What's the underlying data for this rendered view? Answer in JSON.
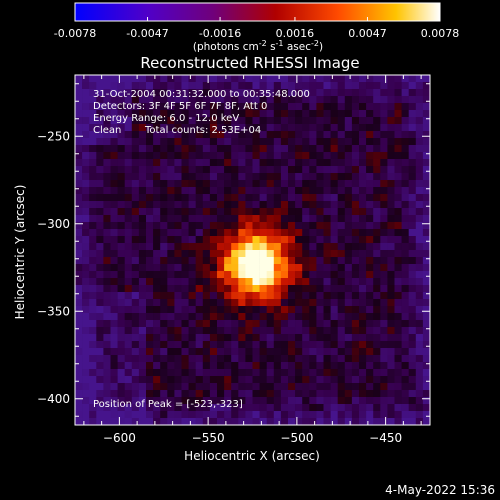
{
  "colorbar": {
    "ticks": [
      "-0.0078",
      "-0.0047",
      "-0.0016",
      "0.0016",
      "0.0047",
      "0.0078"
    ],
    "tick_values": [
      -0.0078,
      -0.0047,
      -0.0016,
      0.0016,
      0.0047,
      0.0078
    ],
    "units_label": "(photons cm",
    "units_sup1": "-2",
    "units_mid1": " s",
    "units_sup2": "-1",
    "units_mid2": " asec",
    "units_sup3": "-2",
    "units_end": ")",
    "colors": [
      "#0000ff",
      "#5a00c8",
      "#7a0080",
      "#b00000",
      "#ff4000",
      "#ffcc00",
      "#ffffff"
    ]
  },
  "chart_data": {
    "type": "heatmap",
    "title": "Reconstructed RHESSI Image",
    "xlabel": "Heliocentric X (arcsec)",
    "ylabel": "Heliocentric Y (arcsec)",
    "xlim": [
      -625,
      -425
    ],
    "ylim": [
      -415,
      -215
    ],
    "x_ticks": [
      -600,
      -550,
      -500,
      -450
    ],
    "y_ticks": [
      -400,
      -350,
      -300,
      -250
    ],
    "x_tick_labels": [
      "−600",
      "−550",
      "−500",
      "−450"
    ],
    "y_tick_labels": [
      "−400",
      "−350",
      "−300",
      "−250"
    ],
    "peak": [
      -523,
      -323
    ],
    "annotations": {
      "line1": "31-Oct-2004 00:31:32.000 to 00:35:48.000",
      "line2": "Detectors: 3F 4F 5F 6F 7F 8F, Att 0",
      "line3": "Energy Range: 6.0 - 12.0 keV",
      "line4_a": "Clean",
      "line4_b": "Total counts: 2.53E+04",
      "peak_text": "Position of Peak = [-523,-323]"
    }
  },
  "footer": {
    "timestamp": "4-May-2022 15:36"
  }
}
